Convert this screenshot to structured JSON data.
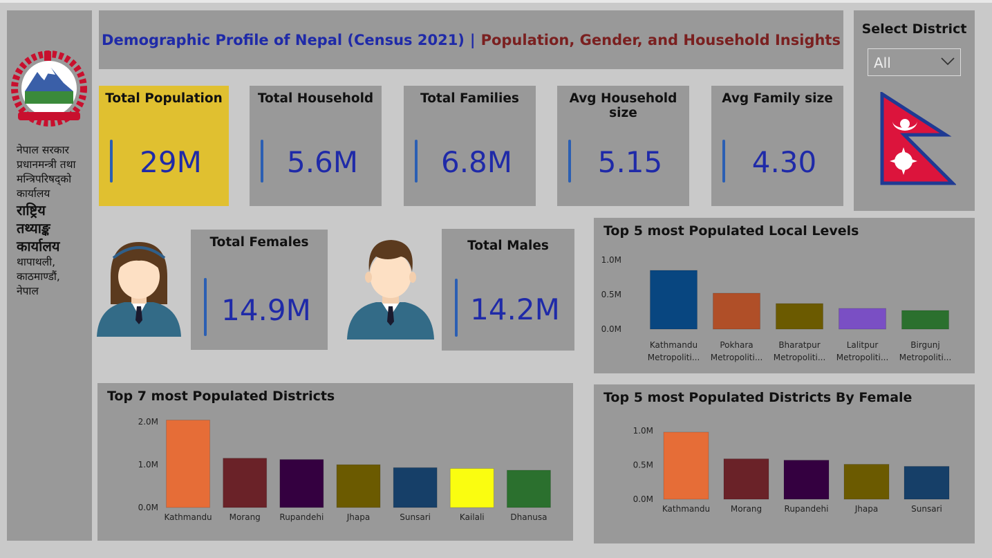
{
  "left_panel": {
    "lines": [
      "नेपाल सरकार",
      "प्रधानमन्त्री तथा",
      "मन्त्रिपरिषद्को",
      "कार्यालय"
    ],
    "bold_lines": [
      "राष्ट्रिय",
      "तथ्याङ्क",
      "कार्यालय"
    ],
    "address": [
      "थापाथली,",
      "काठमाण्डौं,",
      "नेपाल"
    ]
  },
  "header": {
    "title_part1": "Demographic Profile of Nepal (Census 2021)",
    "separator": "|",
    "title_part2": "Population, Gender, and Household Insights"
  },
  "kpis": [
    {
      "label": "Total Population",
      "value": "29M",
      "highlight": true
    },
    {
      "label": "Total Household",
      "value": "5.6M"
    },
    {
      "label": "Total Families",
      "value": "6.8M"
    },
    {
      "label": "Avg Household size",
      "value": "5.15"
    },
    {
      "label": "Avg Family size",
      "value": "4.30"
    }
  ],
  "gender": {
    "females": {
      "label": "Total Females",
      "value": "14.9M",
      "icon": "female-person-icon"
    },
    "males": {
      "label": "Total Males",
      "value": "14.2M",
      "icon": "male-person-icon"
    }
  },
  "filter": {
    "label": "Select District",
    "selected": "All"
  },
  "colors": {
    "accent_text": "#1f2aa8",
    "subtitle": "#7a2020",
    "highlight_card": "#e0c030",
    "panel": "#999999"
  },
  "chart_data": [
    {
      "id": "local",
      "type": "bar",
      "title": "Top 5 most  Populated Local Levels",
      "categories": [
        "Kathmandu Metropoliti...",
        "Pokhara Metropoliti...",
        "Bharatpur Metropoliti...",
        "Lalitpur Metropoliti...",
        "Birgunj Metropoliti..."
      ],
      "values": [
        850000,
        520000,
        370000,
        300000,
        270000
      ],
      "colors": [
        "#084680",
        "#b04f28",
        "#6b5a00",
        "#7a4fc4",
        "#2b702e"
      ],
      "yticks": [
        "0.0M",
        "0.5M",
        "1.0M"
      ],
      "ylim": [
        0,
        1000000
      ],
      "grid": false
    },
    {
      "id": "districts",
      "type": "bar",
      "title": "Top 7 most  Populated Districts",
      "categories": [
        "Kathmandu",
        "Morang",
        "Rupandehi",
        "Jhapa",
        "Sunsari",
        "Kailali",
        "Dhanusa"
      ],
      "values": [
        2040000,
        1150000,
        1120000,
        1000000,
        930000,
        910000,
        870000
      ],
      "colors": [
        "#e66d37",
        "#6a2228",
        "#340040",
        "#6b5a00",
        "#163f68",
        "#fafd10",
        "#2b702e"
      ],
      "yticks": [
        "0.0M",
        "1.0M",
        "2.0M"
      ],
      "ylim": [
        0,
        2000000
      ],
      "grid": false
    },
    {
      "id": "female",
      "type": "bar",
      "title": "Top 5 most  Populated Districts By Female",
      "categories": [
        "Kathmandu",
        "Morang",
        "Rupandehi",
        "Jhapa",
        "Sunsari"
      ],
      "values": [
        980000,
        590000,
        570000,
        510000,
        480000
      ],
      "colors": [
        "#e66d37",
        "#6a2228",
        "#340040",
        "#6b5a00",
        "#163f68"
      ],
      "yticks": [
        "0.0M",
        "0.5M",
        "1.0M"
      ],
      "ylim": [
        0,
        1000000
      ],
      "grid": false
    }
  ]
}
